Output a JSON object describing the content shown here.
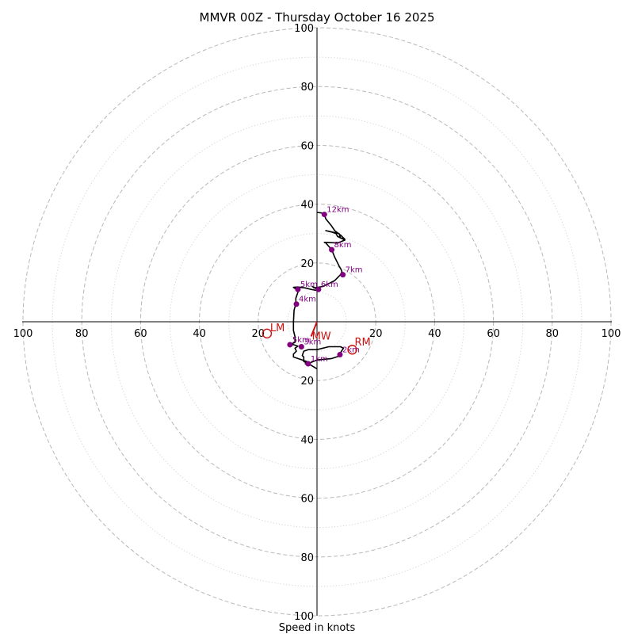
{
  "chart_data": {
    "type": "hodograph",
    "title": "MMVR 00Z - Thursday October 16 2025",
    "xlabel": "Speed in knots",
    "rings": [
      20,
      40,
      60,
      80,
      100
    ],
    "minor_rings": [
      10,
      30,
      50,
      70,
      90
    ],
    "xlim": [
      -100,
      100
    ],
    "ylim": [
      -100,
      100
    ],
    "ticks": [
      {
        "x": -100,
        "label": "100"
      },
      {
        "x": -80,
        "label": "80"
      },
      {
        "x": -60,
        "label": "60"
      },
      {
        "x": -40,
        "label": "40"
      },
      {
        "x": -20,
        "label": "20"
      },
      {
        "x": 20,
        "label": "20"
      },
      {
        "x": 40,
        "label": "40"
      },
      {
        "x": 60,
        "label": "60"
      },
      {
        "x": 80,
        "label": "80"
      },
      {
        "x": 100,
        "label": "100"
      }
    ],
    "yticks": [
      {
        "y": 100,
        "label": "100"
      },
      {
        "y": 80,
        "label": "80"
      },
      {
        "y": 60,
        "label": "60"
      },
      {
        "y": 40,
        "label": "40"
      },
      {
        "y": 20,
        "label": "20"
      },
      {
        "y": -20,
        "label": "20"
      },
      {
        "y": -40,
        "label": "40"
      },
      {
        "y": -60,
        "label": "60"
      },
      {
        "y": -80,
        "label": "80"
      },
      {
        "y": -100,
        "label": "100"
      }
    ],
    "trace_color": "#000000",
    "height_color": "#800080",
    "motion_color": "#cc1111",
    "trace": [
      [
        0,
        -16
      ],
      [
        -2.5,
        -14.5
      ],
      [
        -4.5,
        -13.5
      ],
      [
        -4.5,
        -12
      ],
      [
        -5,
        -11.5
      ],
      [
        -4.5,
        -10
      ],
      [
        -3,
        -9.5
      ],
      [
        0,
        -9.5
      ],
      [
        4,
        -8.5
      ],
      [
        8,
        -8.5
      ],
      [
        9,
        -9
      ],
      [
        8,
        -10.5
      ],
      [
        8,
        -11.5
      ],
      [
        5,
        -12.5
      ],
      [
        0,
        -13
      ],
      [
        -3,
        -14.2
      ],
      [
        -4,
        -14.3
      ],
      [
        -3.5,
        -13.5
      ],
      [
        -6.5,
        -12.5
      ],
      [
        -8,
        -12
      ],
      [
        -8,
        -11
      ],
      [
        -7,
        -10
      ],
      [
        -7.5,
        -9
      ],
      [
        -6.5,
        -8.3
      ],
      [
        -8,
        -7.8
      ],
      [
        -9.2,
        -7.8
      ],
      [
        -7.5,
        -7
      ],
      [
        -7.5,
        -5
      ],
      [
        -8,
        -3
      ],
      [
        -8,
        0
      ],
      [
        -7.8,
        4
      ],
      [
        -7.2,
        6
      ],
      [
        -7.2,
        8
      ],
      [
        -6.5,
        10
      ],
      [
        -7,
        11
      ],
      [
        -8,
        11.7
      ],
      [
        -6.5,
        11.8
      ],
      [
        -4,
        11.5
      ],
      [
        -2,
        11
      ],
      [
        0.5,
        10.5
      ],
      [
        0.5,
        10.7
      ],
      [
        -1.5,
        12
      ],
      [
        -1,
        11.5
      ],
      [
        2,
        12
      ],
      [
        6,
        14
      ],
      [
        8,
        16
      ],
      [
        8.5,
        17
      ],
      [
        8.2,
        17.8
      ],
      [
        7.5,
        19
      ],
      [
        7,
        20
      ],
      [
        6,
        22
      ],
      [
        5,
        24.5
      ],
      [
        3,
        26.8
      ],
      [
        2.5,
        27
      ],
      [
        7,
        26.8
      ],
      [
        9.5,
        27.8
      ],
      [
        7,
        29
      ],
      [
        6.5,
        30
      ],
      [
        5,
        30.5
      ],
      [
        3,
        31
      ],
      [
        7.5,
        30
      ],
      [
        8,
        28.5
      ],
      [
        9.5,
        28
      ],
      [
        8,
        29.5
      ],
      [
        6,
        31
      ],
      [
        5,
        32.5
      ],
      [
        3,
        35
      ],
      [
        2.5,
        36.5
      ],
      [
        1.5,
        37
      ],
      [
        0,
        37.2
      ]
    ],
    "heights": [
      {
        "label": "1km",
        "x": -3,
        "y": -14.3
      },
      {
        "label": "2km",
        "x": 7.8,
        "y": -11.2
      },
      {
        "label": "3km",
        "x": -5.3,
        "y": -8.5
      },
      {
        "label": "5km",
        "x": -9.2,
        "y": -7.8
      },
      {
        "label": "4km",
        "x": -7,
        "y": 6
      },
      {
        "label": "5km",
        "x": -6.5,
        "y": 11
      },
      {
        "label": "6km",
        "x": 0.5,
        "y": 11
      },
      {
        "label": "7km",
        "x": 8.8,
        "y": 16
      },
      {
        "label": "8km",
        "x": 5,
        "y": 24.5
      },
      {
        "label": "12km",
        "x": 2.5,
        "y": 36.5
      }
    ],
    "motions": [
      {
        "label": "RM",
        "x": 12,
        "y": -9.5
      },
      {
        "label": "LM",
        "x": -17,
        "y": -4
      },
      {
        "label": "MW",
        "x": -2,
        "y": -5
      }
    ]
  }
}
